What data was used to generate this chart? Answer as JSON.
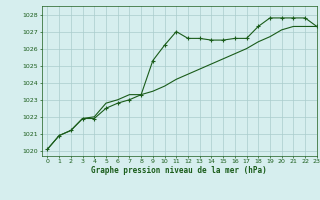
{
  "title": "Graphe pression niveau de la mer (hPa)",
  "background_color": "#d6eeee",
  "grid_color": "#aacccc",
  "line_color": "#1a5c1a",
  "xlim": [
    -0.5,
    23
  ],
  "ylim": [
    1019.7,
    1028.5
  ],
  "yticks": [
    1020,
    1021,
    1022,
    1023,
    1024,
    1025,
    1026,
    1027,
    1028
  ],
  "xticks": [
    0,
    1,
    2,
    3,
    4,
    5,
    6,
    7,
    8,
    9,
    10,
    11,
    12,
    13,
    14,
    15,
    16,
    17,
    18,
    19,
    20,
    21,
    22,
    23
  ],
  "line1_x": [
    0,
    1,
    2,
    3,
    4,
    5,
    6,
    7,
    8,
    9,
    10,
    11,
    12,
    13,
    14,
    15,
    16,
    17,
    18,
    19,
    20,
    21,
    22,
    23
  ],
  "line1_y": [
    1020.1,
    1020.9,
    1021.2,
    1021.9,
    1021.9,
    1022.5,
    1022.8,
    1023.0,
    1023.3,
    1025.3,
    1026.2,
    1027.0,
    1026.6,
    1026.6,
    1026.5,
    1026.5,
    1026.6,
    1026.6,
    1027.3,
    1027.8,
    1027.8,
    1027.8,
    1027.8,
    1027.3
  ],
  "line2_x": [
    0,
    1,
    2,
    3,
    4,
    5,
    6,
    7,
    8,
    9,
    10,
    11,
    12,
    13,
    14,
    15,
    16,
    17,
    18,
    19,
    20,
    21,
    22,
    23
  ],
  "line2_y": [
    1020.1,
    1020.9,
    1021.2,
    1021.9,
    1022.0,
    1022.8,
    1023.0,
    1023.3,
    1023.3,
    1023.5,
    1023.8,
    1024.2,
    1024.5,
    1024.8,
    1025.1,
    1025.4,
    1025.7,
    1026.0,
    1026.4,
    1026.7,
    1027.1,
    1027.3,
    1027.3,
    1027.3
  ]
}
